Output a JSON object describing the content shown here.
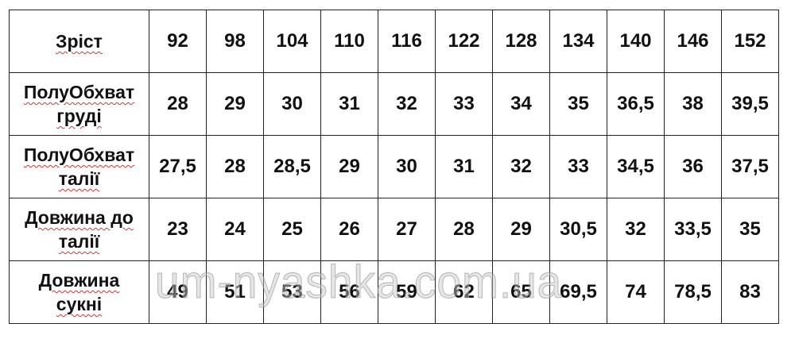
{
  "table": {
    "rows": [
      {
        "label": [
          "Зріст"
        ],
        "values": [
          "92",
          "98",
          "104",
          "110",
          "116",
          "122",
          "128",
          "134",
          "140",
          "146",
          "152"
        ]
      },
      {
        "label": [
          "ПолуОбхват",
          "груді"
        ],
        "values": [
          "28",
          "29",
          "30",
          "31",
          "32",
          "33",
          "34",
          "35",
          "36,5",
          "38",
          "39,5"
        ]
      },
      {
        "label": [
          "ПолуОбхват",
          "талії"
        ],
        "values": [
          "27,5",
          "28",
          "28,5",
          "29",
          "30",
          "31",
          "32",
          "33",
          "34,5",
          "36",
          "37,5"
        ]
      },
      {
        "label": [
          "Довжина до",
          "талії"
        ],
        "values": [
          "23",
          "24",
          "25",
          "26",
          "27",
          "28",
          "29",
          "30,5",
          "32",
          "33,5",
          "35"
        ]
      },
      {
        "label": [
          "Довжина",
          "сукні"
        ],
        "values": [
          "49",
          "51",
          "53",
          "56",
          "59",
          "62",
          "65",
          "69,5",
          "74",
          "78,5",
          "83"
        ]
      }
    ]
  },
  "watermark": "um-nyashka.com.ua"
}
